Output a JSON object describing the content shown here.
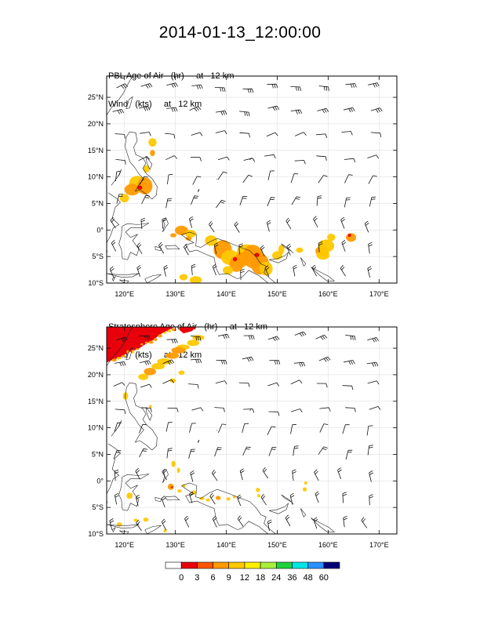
{
  "title": "2014-01-13_12:00:00",
  "panels": [
    {
      "name": "pbl",
      "field_label": "PBL Age of Air",
      "field_unit": "(hr)",
      "field_level": "at   12 km",
      "wind_label": "Wind",
      "wind_unit": "(kts)",
      "wind_level": "at   12 km",
      "lat_ticks": [
        "25°N",
        "20°N",
        "15°N",
        "10°N",
        "5°N",
        "0°",
        "5°S",
        "10°S"
      ],
      "lon_ticks": [
        "120°E",
        "130°E",
        "140°E",
        "150°E",
        "160°E",
        "170°E"
      ]
    },
    {
      "name": "stratosphere",
      "field_label": "Stratosphere Age of Air",
      "field_unit": "(hr)",
      "field_level": "at   12 km",
      "wind_label": "Wind",
      "wind_unit": "(kts)",
      "wind_level": "at   12 km",
      "lat_ticks": [
        "25°N",
        "20°N",
        "15°N",
        "10°N",
        "5°N",
        "0°",
        "5°S",
        "10°S"
      ],
      "lon_ticks": [
        "120°E",
        "130°E",
        "140°E",
        "150°E",
        "160°E",
        "170°E"
      ]
    }
  ],
  "colorbar": {
    "labels": [
      "0",
      "3",
      "6",
      "9",
      "12",
      "18",
      "24",
      "36",
      "48",
      "60"
    ],
    "colors": [
      "#ffffff",
      "#e8000b",
      "#ff5500",
      "#ff9a00",
      "#ffc800",
      "#fff000",
      "#a8f03c",
      "#1fd23c",
      "#00e6e6",
      "#2890ff",
      "#000078"
    ]
  },
  "map_extent": {
    "lon_min": 116.5,
    "lon_max": 173.5,
    "lat_min": -10,
    "lat_max": 29
  },
  "shading_colors": {
    "deep": "#e8000b",
    "mid": "#ff9a00",
    "light": "#ffc800",
    "pale": "#fff000"
  }
}
